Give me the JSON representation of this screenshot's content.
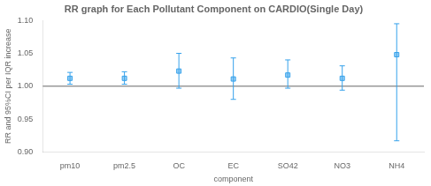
{
  "chart_data": {
    "type": "errorbar",
    "title": "RR graph for Each Pollutant Component on CARDIO(Single Day)",
    "xlabel": "component",
    "ylabel": "RR and 95%CI per IQR increase",
    "categories": [
      "pm10",
      "pm2.5",
      "OC",
      "EC",
      "SO42",
      "NO3",
      "NH4"
    ],
    "values": [
      1.012,
      1.012,
      1.023,
      1.011,
      1.017,
      1.012,
      1.048
    ],
    "ci_lower": [
      1.003,
      1.003,
      0.997,
      0.98,
      0.997,
      0.994,
      0.917
    ],
    "ci_upper": [
      1.021,
      1.022,
      1.05,
      1.043,
      1.04,
      1.031,
      1.095
    ],
    "ref_line": 1.0,
    "ylim": [
      0.9,
      1.1
    ],
    "yticks": [
      {
        "value": 0.9,
        "label": "0.90"
      },
      0.95,
      {
        "value": 1.0,
        "label": "1.00"
      },
      1.05,
      {
        "value": 1.1,
        "label": "1.10"
      }
    ],
    "grid": false,
    "marker": "square"
  }
}
